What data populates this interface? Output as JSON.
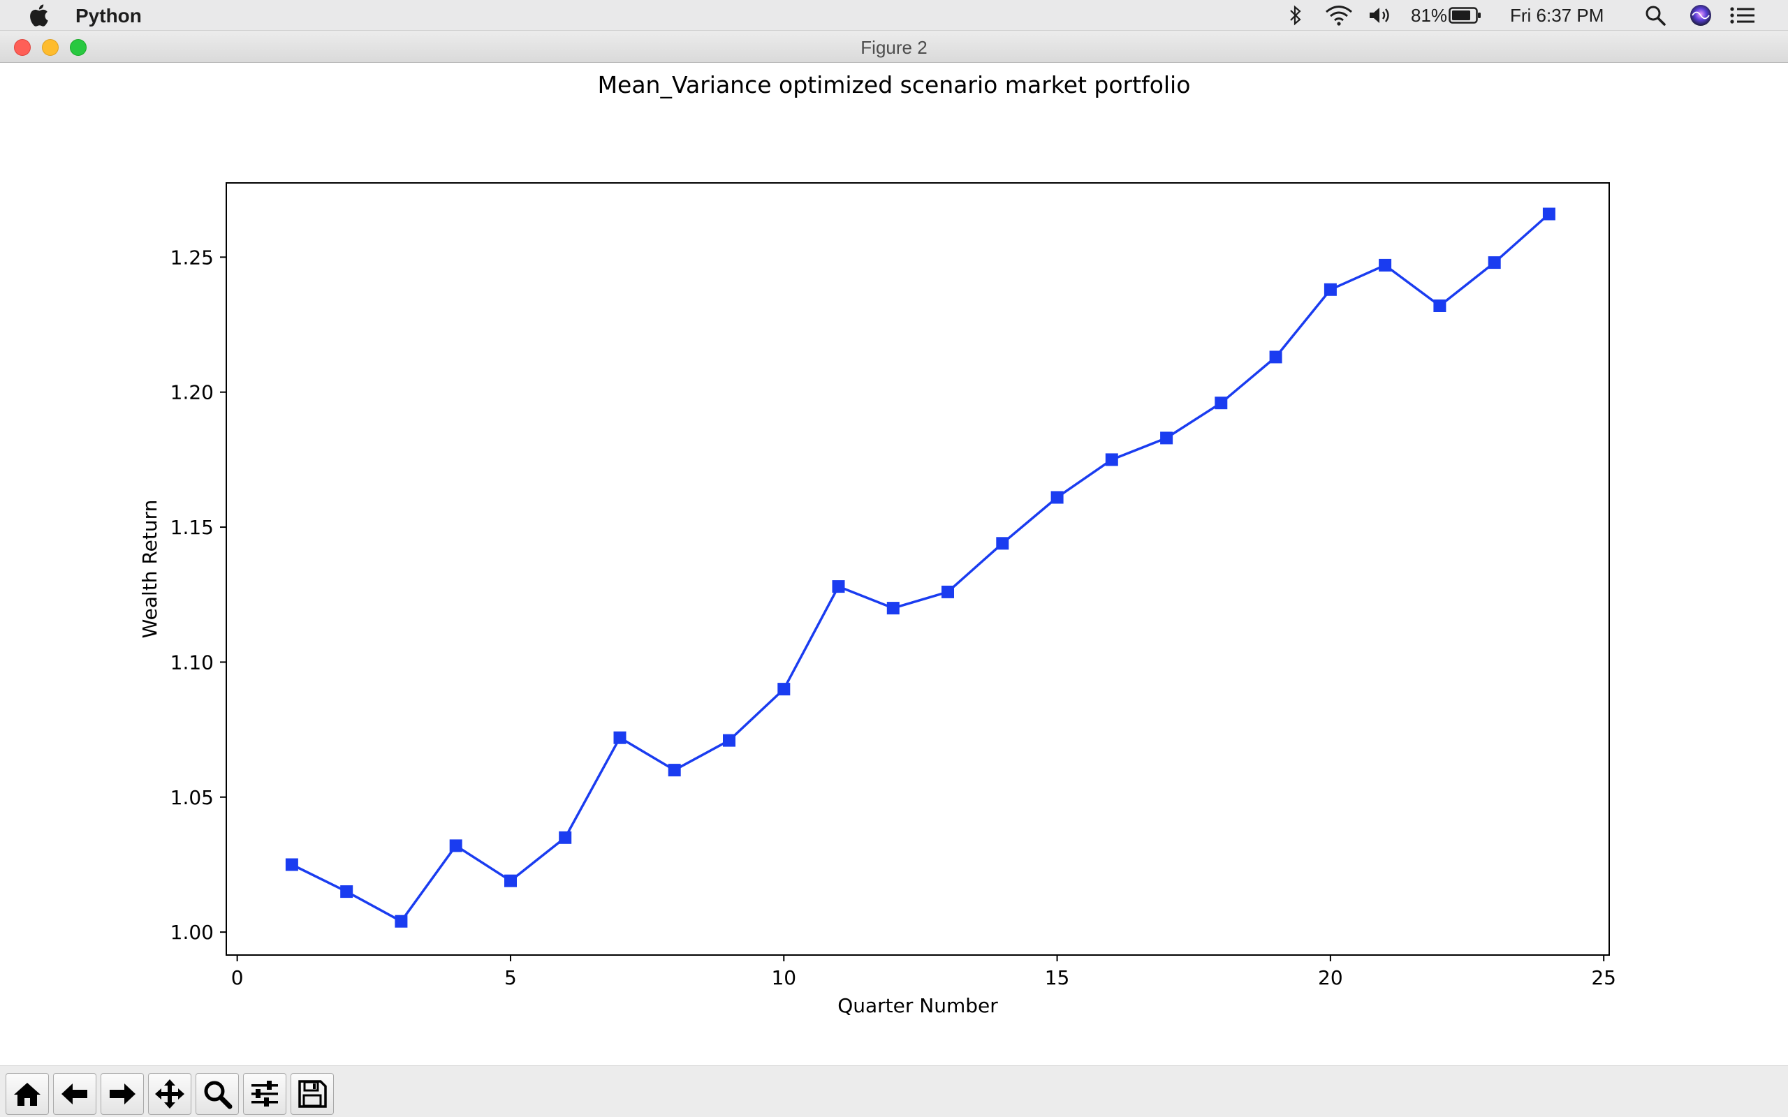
{
  "menubar": {
    "app_name": "Python",
    "battery_percent": "81%",
    "clock": "Fri 6:37 PM",
    "icons": [
      "apple-icon",
      "bluetooth-icon",
      "wifi-icon",
      "volume-icon",
      "battery-icon",
      "spotlight-search-icon",
      "siri-icon",
      "notification-center-icon"
    ]
  },
  "window": {
    "title": "Figure 2"
  },
  "toolbar": {
    "tools": [
      "home-icon",
      "back-arrow-icon",
      "forward-arrow-icon",
      "pan-icon",
      "zoom-icon",
      "configure-subplots-icon",
      "save-icon"
    ]
  },
  "chart_data": {
    "type": "line",
    "title": "Mean_Variance optimized scenario market portfolio",
    "xlabel": "Quarter Number",
    "ylabel": "Wealth Return",
    "xlim": [
      -0.2,
      25.1
    ],
    "ylim": [
      0.9915,
      1.2775
    ],
    "xticks": [
      0,
      5,
      10,
      15,
      20,
      25
    ],
    "xtick_labels": [
      "0",
      "5",
      "10",
      "15",
      "20",
      "25"
    ],
    "yticks": [
      1.0,
      1.05,
      1.1,
      1.15,
      1.2,
      1.25
    ],
    "ytick_labels": [
      "1.00",
      "1.05",
      "1.10",
      "1.15",
      "1.20",
      "1.25"
    ],
    "grid": false,
    "marker": "square",
    "line_color": "#1a3cf0",
    "x": [
      1,
      2,
      3,
      4,
      5,
      6,
      7,
      8,
      9,
      10,
      11,
      12,
      13,
      14,
      15,
      16,
      17,
      18,
      19,
      20,
      21,
      22,
      23,
      24
    ],
    "y": [
      1.025,
      1.015,
      1.004,
      1.032,
      1.019,
      1.035,
      1.072,
      1.06,
      1.071,
      1.09,
      1.128,
      1.12,
      1.126,
      1.144,
      1.161,
      1.175,
      1.183,
      1.196,
      1.213,
      1.238,
      1.247,
      1.232,
      1.248,
      1.266
    ]
  }
}
